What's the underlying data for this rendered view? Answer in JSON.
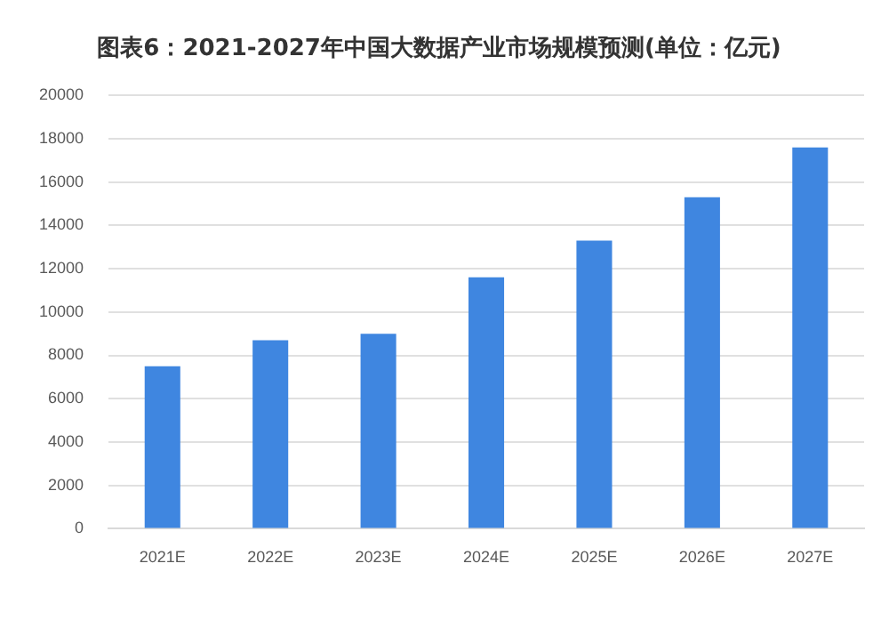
{
  "chart_data": {
    "type": "bar",
    "title": "图表6：2021-2027年中国大数据产业市场规模预测(单位：亿元)",
    "categories": [
      "2021E",
      "2022E",
      "2023E",
      "2024E",
      "2025E",
      "2026E",
      "2027E"
    ],
    "values": [
      7500,
      8700,
      9000,
      11600,
      13300,
      15300,
      17600
    ],
    "color": "#3f86e0",
    "ylim": [
      0,
      20000
    ],
    "yticks": [
      0,
      2000,
      4000,
      6000,
      8000,
      10000,
      12000,
      14000,
      16000,
      18000,
      20000
    ],
    "grid": "y",
    "legend": false
  }
}
